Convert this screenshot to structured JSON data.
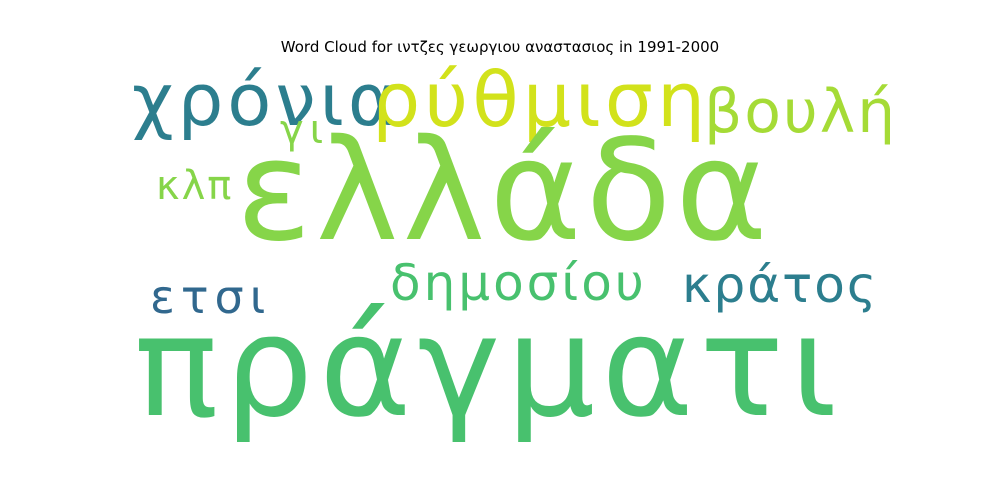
{
  "title": "Word Cloud for ιντζες γεωργιου αναστασιος in 1991-2000",
  "words": [
    {
      "text": "πράγματι",
      "color": "#48c16e"
    },
    {
      "text": "ελλάδα",
      "color": "#86d549"
    },
    {
      "text": "χρόνια",
      "color": "#2c7e8e"
    },
    {
      "text": "ρύθμιση",
      "color": "#d2e21b"
    },
    {
      "text": "βουλή",
      "color": "#a5db36"
    },
    {
      "text": "γι",
      "color": "#86d549"
    },
    {
      "text": "κλπ",
      "color": "#86d549"
    },
    {
      "text": "ετσι",
      "color": "#31688e"
    },
    {
      "text": "δημοσίου",
      "color": "#48c16e"
    },
    {
      "text": "κράτος",
      "color": "#2c7e8e"
    }
  ]
}
